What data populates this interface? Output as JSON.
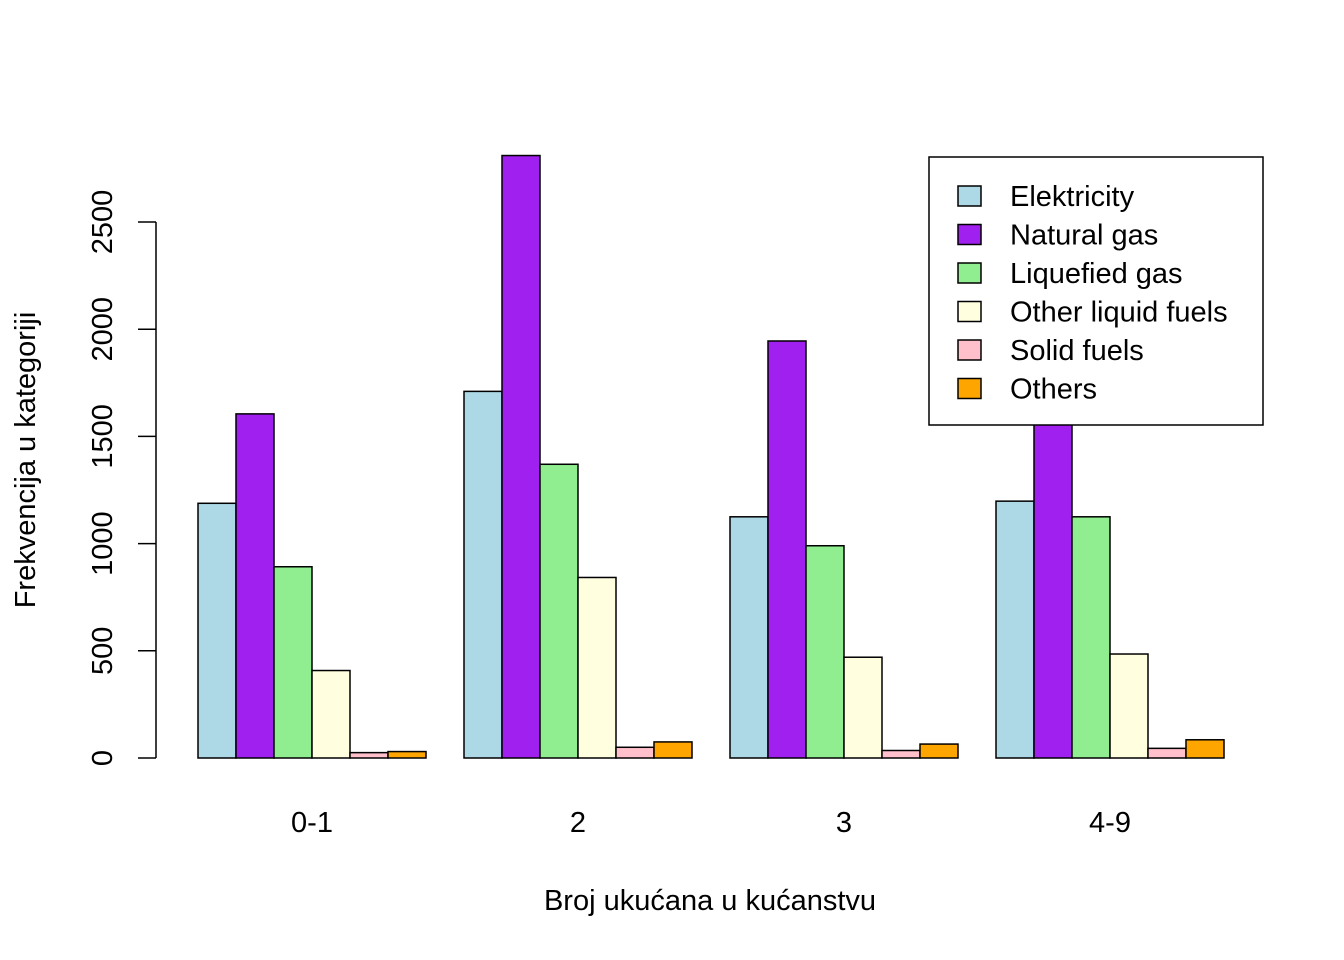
{
  "chart_data": {
    "type": "bar",
    "title": "",
    "xlabel": "Broj ukućana u kućanstvu",
    "ylabel": "Frekvencija u kategoriji",
    "categories": [
      "0-1",
      "2",
      "3",
      "4-9"
    ],
    "ylim": [
      0,
      2800
    ],
    "yticks": [
      0,
      500,
      1000,
      1500,
      2000,
      2500
    ],
    "grid": false,
    "legend_position": "top-right",
    "series": [
      {
        "name": "Elektricity",
        "color": "#ADD8E6",
        "values": [
          1188,
          1710,
          1125,
          1198
        ]
      },
      {
        "name": "Natural gas",
        "color": "#A020F0",
        "values": [
          1605,
          2810,
          1945,
          1900
        ]
      },
      {
        "name": "Liquefied gas",
        "color": "#90EE90",
        "values": [
          892,
          1370,
          990,
          1125
        ]
      },
      {
        "name": "Other liquid fuels",
        "color": "#FFFFE0",
        "values": [
          408,
          842,
          470,
          485
        ]
      },
      {
        "name": "Solid fuels",
        "color": "#FFC0CB",
        "values": [
          25,
          50,
          35,
          45
        ]
      },
      {
        "name": "Others",
        "color": "#FFA500",
        "values": [
          30,
          75,
          65,
          85
        ]
      }
    ]
  }
}
